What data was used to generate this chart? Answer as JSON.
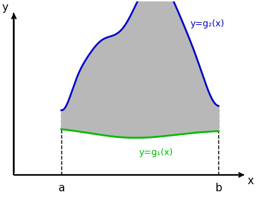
{
  "background_color": "#ffffff",
  "a": 0.22,
  "b": 0.95,
  "label_a": "a",
  "label_b": "b",
  "label_x": "x",
  "label_y": "y",
  "label_g2": "y=g₂(x)",
  "label_g1": "y=g₁(x)",
  "fill_color": "#b8b8b8",
  "fill_alpha": 1.0,
  "g2_color": "#0000cc",
  "g1_color": "#00bb00",
  "axis_color": "#000000",
  "dashed_color": "#000000",
  "g2_linewidth": 1.8,
  "g1_linewidth": 1.8,
  "axis_linewidth": 1.5
}
